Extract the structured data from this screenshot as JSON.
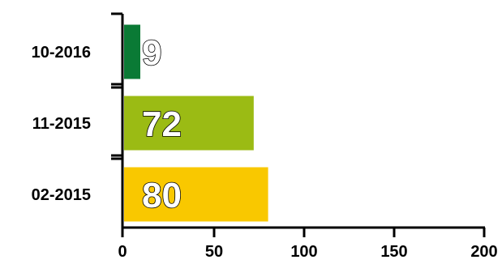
{
  "chart_data": {
    "type": "bar",
    "orientation": "horizontal",
    "categories": [
      "10-2016",
      "11-2015",
      "02-2015"
    ],
    "values": [
      9,
      72,
      80
    ],
    "data_labels": [
      "9",
      "72",
      "80"
    ],
    "colors": [
      "#0a7a35",
      "#9bbb14",
      "#f9c800"
    ],
    "xlim": [
      0,
      200
    ],
    "xticks": [
      0,
      50,
      100,
      150,
      200
    ],
    "xtick_labels": [
      "0",
      "50",
      "100",
      "150",
      "200"
    ],
    "grid": false,
    "legend": "none"
  }
}
